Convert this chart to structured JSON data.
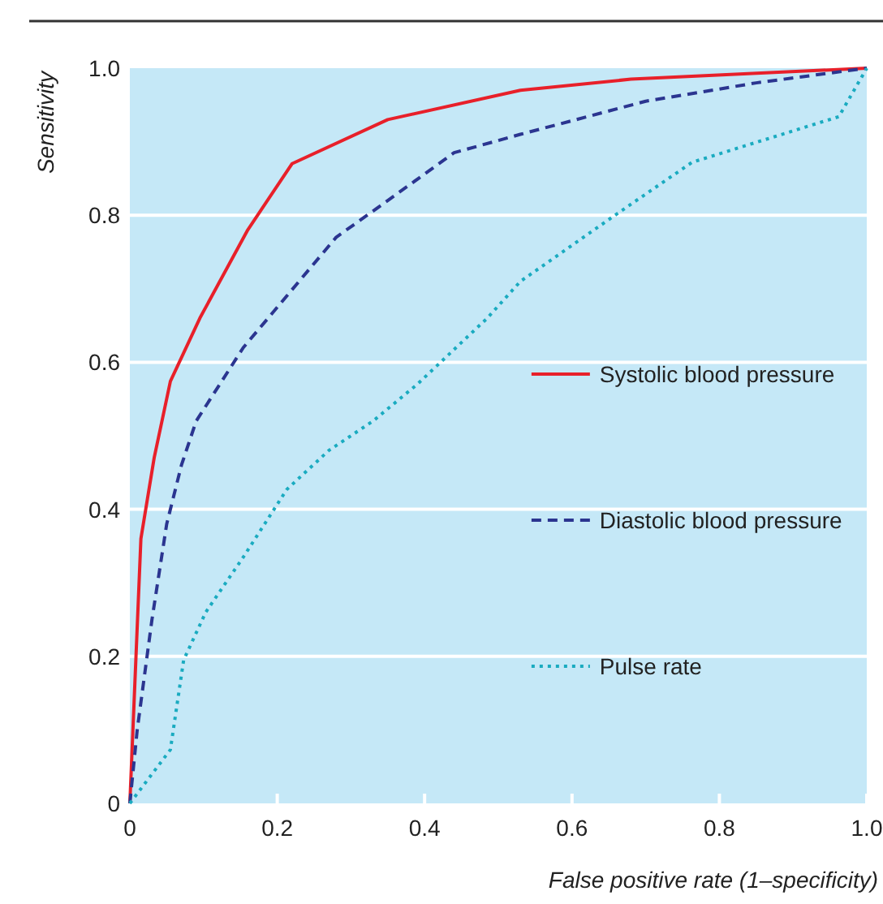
{
  "chart_data": {
    "type": "line",
    "xlabel": "False positive rate (1–specificity)",
    "ylabel": "Sensitivity",
    "xlim": [
      0,
      1
    ],
    "ylim": [
      0,
      1
    ],
    "xticks": [
      0,
      0.2,
      0.4,
      0.6,
      0.8,
      {
        "value": 1,
        "label": "1.0"
      }
    ],
    "yticks": [
      0,
      0.2,
      0.4,
      0.6,
      0.8,
      {
        "value": 1,
        "label": "1.0"
      }
    ],
    "grid": "y",
    "legend": "right",
    "series": [
      {
        "name": "Systolic blood pressure",
        "color": "#e8202a",
        "line_style": "solid",
        "x": [
          0,
          0.015,
          0.033,
          0.055,
          0.095,
          0.16,
          0.22,
          0.35,
          0.53,
          0.68,
          1
        ],
        "values": [
          0,
          0.36,
          0.47,
          0.574,
          0.66,
          0.78,
          0.87,
          0.93,
          0.97,
          0.985,
          1
        ]
      },
      {
        "name": "Diastolic blood pressure",
        "color": "#2b3590",
        "line_style": "dashed",
        "x": [
          0,
          0.01,
          0.03,
          0.05,
          0.07,
          0.09,
          0.154,
          0.28,
          0.35,
          0.44,
          0.53,
          0.7,
          0.85,
          1
        ],
        "values": [
          0,
          0.1,
          0.25,
          0.38,
          0.46,
          0.52,
          0.62,
          0.77,
          0.82,
          0.885,
          0.91,
          0.955,
          0.98,
          1
        ]
      },
      {
        "name": "Pulse rate",
        "color": "#1aabc0",
        "line_style": "dotted",
        "x": [
          0,
          0.055,
          0.073,
          0.103,
          0.154,
          0.213,
          0.27,
          0.33,
          0.39,
          0.485,
          0.53,
          0.667,
          0.763,
          0.962,
          1
        ],
        "values": [
          0,
          0.073,
          0.195,
          0.26,
          0.335,
          0.427,
          0.48,
          0.52,
          0.57,
          0.66,
          0.71,
          0.806,
          0.872,
          0.934,
          1
        ]
      }
    ]
  }
}
